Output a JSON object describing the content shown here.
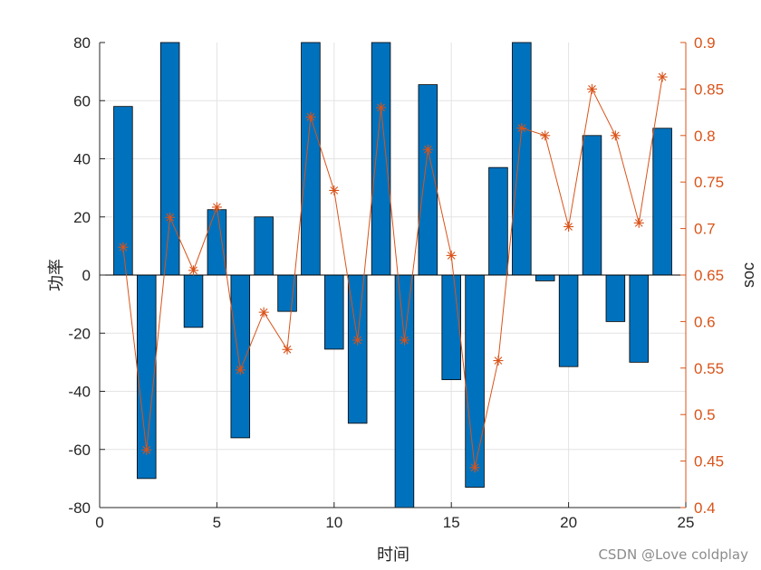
{
  "chart_data": {
    "type": "bar+line",
    "title": "",
    "xlabel": "时间",
    "ylabel_left": "功率",
    "ylabel_right": "soc",
    "xlim": [
      0,
      25
    ],
    "ylim_left": [
      -80,
      80
    ],
    "ylim_right": [
      0.4,
      0.9
    ],
    "xticks": [
      0,
      5,
      10,
      15,
      20,
      25
    ],
    "yticks_left": [
      80,
      60,
      40,
      20,
      0,
      -20,
      -40,
      -60,
      -80
    ],
    "yticks_right": [
      0.9,
      0.85,
      0.8,
      0.75,
      0.7,
      0.65,
      0.6,
      0.55,
      0.5,
      0.45,
      0.4
    ],
    "grid": true,
    "x": [
      1,
      2,
      3,
      4,
      5,
      6,
      7,
      8,
      9,
      10,
      11,
      12,
      13,
      14,
      15,
      16,
      17,
      18,
      19,
      20,
      21,
      22,
      23,
      24
    ],
    "series": [
      {
        "type": "bar",
        "axis": "left",
        "values": [
          58,
          -70,
          80,
          -18,
          22.5,
          -56,
          20,
          -12.5,
          80,
          -25.5,
          -51,
          80,
          -80,
          65.5,
          -36,
          -73,
          37,
          80,
          -2,
          -31.5,
          48,
          -16,
          -30,
          50.5
        ]
      },
      {
        "type": "line",
        "axis": "right",
        "marker": "asterisk",
        "values": [
          0.68,
          0.462,
          0.712,
          0.655,
          0.723,
          0.548,
          0.61,
          0.57,
          0.82,
          0.741,
          0.58,
          0.83,
          0.58,
          0.785,
          0.671,
          0.443,
          0.558,
          0.808,
          0.8,
          0.702,
          0.85,
          0.8,
          0.706,
          0.863
        ]
      }
    ],
    "colors": {
      "bar": "#0072BD",
      "bar_edge": "#000000",
      "line": "#D95319",
      "grid": "#e3e3e3",
      "axis": "#262626"
    }
  },
  "watermark": "CSDN @Love coldplay"
}
